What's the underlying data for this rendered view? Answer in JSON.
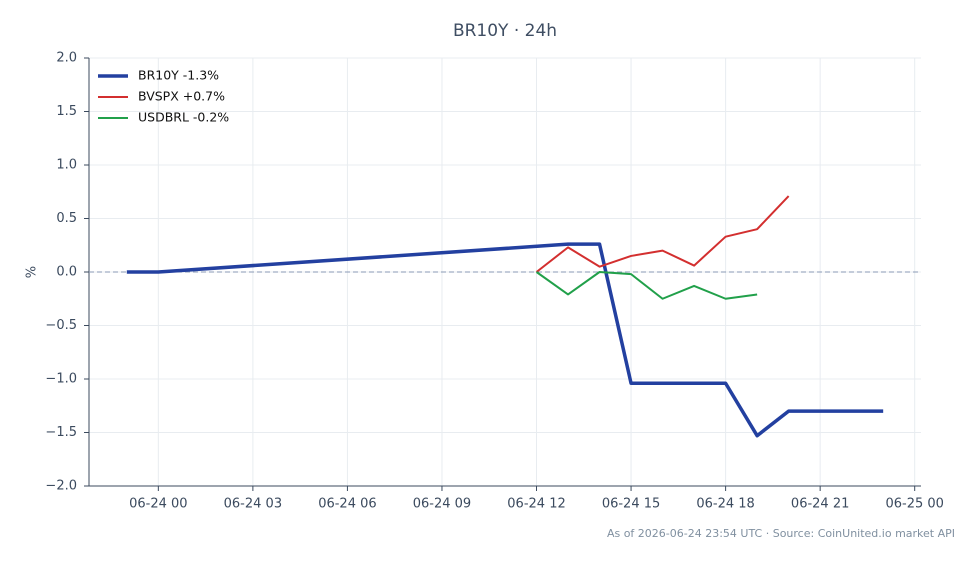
{
  "chart_data": {
    "type": "line",
    "title": "BR10Y · 24h",
    "y_label": "%",
    "footnote": "As of 2026-06-24 23:54 UTC · Source: CoinUnited.io market API",
    "xlim": [
      -2.2,
      24.2
    ],
    "ylim": [
      -2,
      2
    ],
    "xticks": [
      {
        "value": 0,
        "label": "06-24 00"
      },
      {
        "value": 3,
        "label": "06-24 03"
      },
      {
        "value": 6,
        "label": "06-24 06"
      },
      {
        "value": 9,
        "label": "06-24 09"
      },
      {
        "value": 12,
        "label": "06-24 12"
      },
      {
        "value": 15,
        "label": "06-24 15"
      },
      {
        "value": 18,
        "label": "06-24 18"
      },
      {
        "value": 21,
        "label": "06-24 21"
      },
      {
        "value": 24,
        "label": "06-25 00"
      }
    ],
    "yticks": [
      {
        "value": -2,
        "label": "−2.0"
      },
      {
        "value": -1.5,
        "label": "−1.5"
      },
      {
        "value": -1,
        "label": "−1.0"
      },
      {
        "value": -0.5,
        "label": "−0.5"
      },
      {
        "value": 0,
        "label": "0.0"
      },
      {
        "value": 0.5,
        "label": "0.5"
      },
      {
        "value": 1,
        "label": "1.0"
      },
      {
        "value": 1.5,
        "label": "1.5"
      },
      {
        "value": 2,
        "label": "2.0"
      }
    ],
    "grid": true,
    "legend": "top-left",
    "series": [
      {
        "name": "BR10Y -1.3%",
        "color": "#2340a0",
        "width": 3.5,
        "x": [
          -1,
          0,
          13,
          14,
          15,
          16,
          17,
          18,
          19,
          20,
          21,
          22,
          23
        ],
        "values": [
          0,
          0,
          0.26,
          0.26,
          -1.04,
          -1.04,
          -1.04,
          -1.04,
          -1.53,
          -1.3,
          -1.3,
          -1.3,
          -1.3
        ]
      },
      {
        "name": "BVSPX +0.7%",
        "color": "#d32f2f",
        "width": 2,
        "x": [
          12,
          13,
          14,
          15,
          16,
          17,
          18,
          19,
          20
        ],
        "values": [
          0,
          0.23,
          0.05,
          0.15,
          0.2,
          0.06,
          0.33,
          0.4,
          0.71
        ]
      },
      {
        "name": "USDBRL -0.2%",
        "color": "#21a04a",
        "width": 2,
        "x": [
          12,
          13,
          14,
          15,
          16,
          17,
          18,
          19
        ],
        "values": [
          0,
          -0.21,
          0,
          -0.02,
          -0.25,
          -0.13,
          -0.25,
          -0.21
        ]
      }
    ]
  }
}
